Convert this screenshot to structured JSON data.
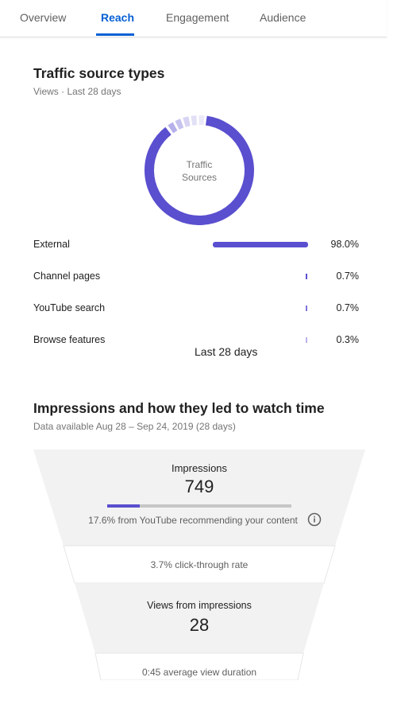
{
  "tabs": [
    {
      "label": "Overview",
      "active": false
    },
    {
      "label": "Reach",
      "active": true
    },
    {
      "label": "Engagement",
      "active": false
    },
    {
      "label": "Audience",
      "active": false
    }
  ],
  "traffic": {
    "title": "Traffic source types",
    "subtitle": "Views · Last 28 days",
    "donut_center": [
      "Traffic",
      "Sources"
    ],
    "accent_color": "#5a4fcf",
    "sources": [
      {
        "label": "External",
        "percent_text": "98.0%",
        "value": 98.0
      },
      {
        "label": "Channel pages",
        "percent_text": "0.7%",
        "value": 0.7
      },
      {
        "label": "YouTube search",
        "percent_text": "0.7%",
        "value": 0.7
      },
      {
        "label": "Browse features",
        "percent_text": "0.3%",
        "value": 0.3
      }
    ],
    "range_label": "Last 28 days"
  },
  "impressions": {
    "title": "Impressions and how they led to watch time",
    "subtitle": "Data available Aug 28 – Sep 24, 2019 (28 days)",
    "impressions_label": "Impressions",
    "impressions_value": "749",
    "recommend_fraction": 0.176,
    "recommend_note": "17.6% from YouTube recommending your content",
    "info_icon": "info-icon",
    "ctr_text": "3.7% click-through rate",
    "views_label": "Views from impressions",
    "views_value": "28",
    "avg_view_text": "0:45 average view duration"
  }
}
